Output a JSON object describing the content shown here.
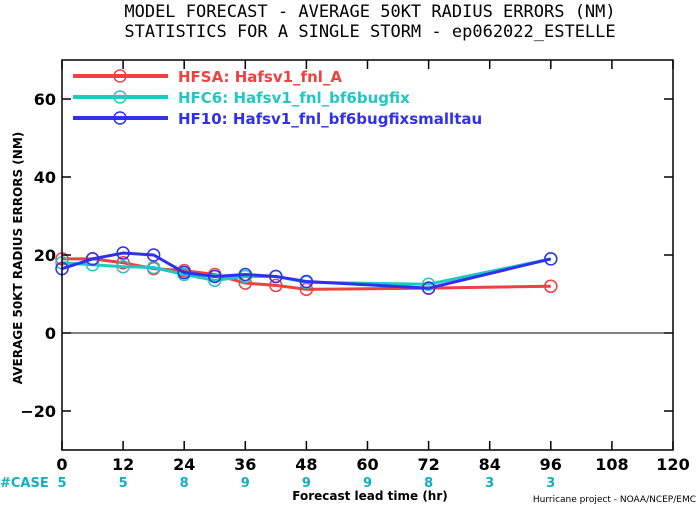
{
  "chart_data": {
    "type": "line",
    "title": "MODEL FORECAST - AVERAGE 50KT RADIUS ERRORS (NM)",
    "subtitle": "STATISTICS FOR A SINGLE STORM - ep062022_ESTELLE",
    "xlabel": "Forecast lead time (hr)",
    "ylabel": "AVERAGE 50KT RADIUS ERRORS (NM)",
    "xlim": [
      0,
      120
    ],
    "ylim": [
      -30,
      70
    ],
    "xticks": [
      0,
      12,
      24,
      36,
      48,
      60,
      72,
      84,
      96,
      108,
      120
    ],
    "yticks": [
      -20,
      0,
      20,
      40,
      60
    ],
    "zero_line": true,
    "legend_position": "top-left",
    "series": [
      {
        "name": "HFSA: Hafsv1_fnl_A",
        "color": "#f04040",
        "x": [
          0,
          6,
          12,
          18,
          24,
          30,
          36,
          42,
          48,
          72,
          96
        ],
        "y": [
          19,
          19,
          18,
          16.5,
          16,
          15,
          12.8,
          12.2,
          11.2,
          11.5,
          12
        ]
      },
      {
        "name": "HFC6: Hafsv1_fnl_bf6bugfix",
        "color": "#20c8c0",
        "x": [
          0,
          6,
          12,
          18,
          24,
          30,
          36,
          42,
          48,
          72,
          96
        ],
        "y": [
          18,
          17.5,
          17,
          16.8,
          15,
          13.5,
          14.5,
          14.5,
          13,
          12.5,
          19
        ]
      },
      {
        "name": "HF10: Hafsv1_fnl_bf6bugfixsmalltau",
        "color": "#3030ee",
        "x": [
          0,
          6,
          12,
          18,
          24,
          30,
          36,
          42,
          48,
          72,
          96
        ],
        "y": [
          16.5,
          19,
          20.5,
          20,
          15.5,
          14.5,
          15,
          14.5,
          13.2,
          11.5,
          19
        ]
      }
    ],
    "case_label": "#CASE",
    "case_counts": [
      {
        "x": 0,
        "n": "5"
      },
      {
        "x": 12,
        "n": "5"
      },
      {
        "x": 24,
        "n": "8"
      },
      {
        "x": 36,
        "n": "9"
      },
      {
        "x": 48,
        "n": "9"
      },
      {
        "x": 60,
        "n": "9"
      },
      {
        "x": 72,
        "n": "8"
      },
      {
        "x": 84,
        "n": "3"
      },
      {
        "x": 96,
        "n": "3"
      }
    ],
    "case_color": "#10b0c0",
    "credit": "Hurricane project - NOAA/NCEP/EMC"
  }
}
